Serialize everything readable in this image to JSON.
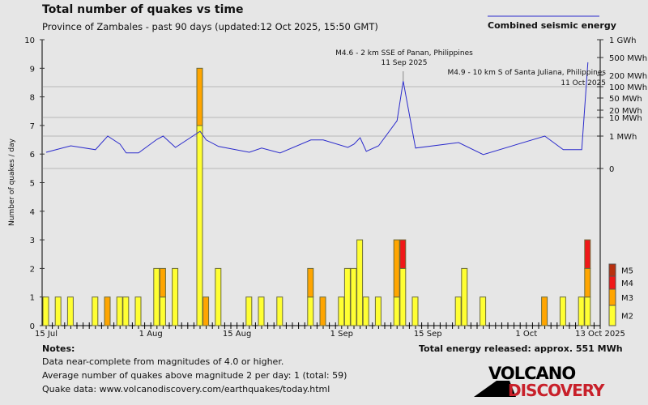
{
  "title": "Total number of quakes vs time",
  "subtitle": "Province of Zambales - past 90 days (updated:12 Oct 2025, 15:50 GMT)",
  "energy_legend": "Combined seismic energy",
  "notes": {
    "heading": "Notes:",
    "lines": [
      "Data near-complete from magnitudes of 4.0 or higher.",
      "Average number of quakes above magnitude 2 per day: 1 (total: 59)",
      "Quake data: www.volcanodiscovery.com/earthquakes/today.html"
    ]
  },
  "total_energy": "Total energy released: approx. 551 MWh",
  "logo": {
    "line1": "VOLCANO",
    "line2": "DISCOVERY"
  },
  "chart_data": {
    "type": "bar",
    "title": "Total number of quakes vs time",
    "ylabel": "Number of quakes / day",
    "ylim": [
      0,
      10
    ],
    "yticks": [
      "0",
      "1",
      "2",
      "3",
      "4",
      "5",
      "6",
      "7",
      "8",
      "9",
      "10"
    ],
    "xstart": "2025-07-15",
    "xend": "2025-10-13",
    "xticks": [
      {
        "date": "2025-07-15",
        "label": "15 Jul"
      },
      {
        "date": "2025-08-01",
        "label": "1 Aug"
      },
      {
        "date": "2025-08-15",
        "label": "15 Aug"
      },
      {
        "date": "2025-09-01",
        "label": "1 Sep"
      },
      {
        "date": "2025-09-15",
        "label": "15 Sep"
      },
      {
        "date": "2025-10-01",
        "label": "1 Oct"
      },
      {
        "date": "2025-10-13",
        "label": "13 Oct 2025"
      }
    ],
    "stack_legend": [
      {
        "name": "M5",
        "color": "#b8300f"
      },
      {
        "name": "M4",
        "color": "#f01818"
      },
      {
        "name": "M3",
        "color": "#ffa500"
      },
      {
        "name": "M2",
        "color": "#ffff33"
      }
    ],
    "days": [
      {
        "date": "2025-07-15",
        "M2": 1,
        "M3": 0,
        "M4": 0
      },
      {
        "date": "2025-07-17",
        "M2": 1,
        "M3": 0,
        "M4": 0
      },
      {
        "date": "2025-07-19",
        "M2": 1,
        "M3": 0,
        "M4": 0
      },
      {
        "date": "2025-07-23",
        "M2": 1,
        "M3": 0,
        "M4": 0
      },
      {
        "date": "2025-07-25",
        "M2": 0,
        "M3": 1,
        "M4": 0
      },
      {
        "date": "2025-07-27",
        "M2": 1,
        "M3": 0,
        "M4": 0
      },
      {
        "date": "2025-07-28",
        "M2": 1,
        "M3": 0,
        "M4": 0
      },
      {
        "date": "2025-07-30",
        "M2": 1,
        "M3": 0,
        "M4": 0
      },
      {
        "date": "2025-08-02",
        "M2": 2,
        "M3": 0,
        "M4": 0
      },
      {
        "date": "2025-08-03",
        "M2": 1,
        "M3": 1,
        "M4": 0
      },
      {
        "date": "2025-08-05",
        "M2": 2,
        "M3": 0,
        "M4": 0
      },
      {
        "date": "2025-08-09",
        "M2": 7,
        "M3": 2,
        "M4": 0
      },
      {
        "date": "2025-08-10",
        "M2": 0,
        "M3": 1,
        "M4": 0
      },
      {
        "date": "2025-08-12",
        "M2": 2,
        "M3": 0,
        "M4": 0
      },
      {
        "date": "2025-08-17",
        "M2": 1,
        "M3": 0,
        "M4": 0
      },
      {
        "date": "2025-08-19",
        "M2": 1,
        "M3": 0,
        "M4": 0
      },
      {
        "date": "2025-08-22",
        "M2": 1,
        "M3": 0,
        "M4": 0
      },
      {
        "date": "2025-08-27",
        "M2": 1,
        "M3": 1,
        "M4": 0
      },
      {
        "date": "2025-08-29",
        "M2": 0,
        "M3": 1,
        "M4": 0
      },
      {
        "date": "2025-09-01",
        "M2": 1,
        "M3": 0,
        "M4": 0
      },
      {
        "date": "2025-09-02",
        "M2": 2,
        "M3": 0,
        "M4": 0
      },
      {
        "date": "2025-09-03",
        "M2": 2,
        "M3": 0,
        "M4": 0
      },
      {
        "date": "2025-09-04",
        "M2": 3,
        "M3": 0,
        "M4": 0
      },
      {
        "date": "2025-09-05",
        "M2": 1,
        "M3": 0,
        "M4": 0
      },
      {
        "date": "2025-09-07",
        "M2": 1,
        "M3": 0,
        "M4": 0
      },
      {
        "date": "2025-09-10",
        "M2": 1,
        "M3": 2,
        "M4": 0
      },
      {
        "date": "2025-09-11",
        "M2": 2,
        "M3": 0,
        "M4": 1
      },
      {
        "date": "2025-09-13",
        "M2": 1,
        "M3": 0,
        "M4": 0
      },
      {
        "date": "2025-09-20",
        "M2": 1,
        "M3": 0,
        "M4": 0
      },
      {
        "date": "2025-09-21",
        "M2": 2,
        "M3": 0,
        "M4": 0
      },
      {
        "date": "2025-09-24",
        "M2": 1,
        "M3": 0,
        "M4": 0
      },
      {
        "date": "2025-10-04",
        "M2": 0,
        "M3": 1,
        "M4": 0
      },
      {
        "date": "2025-10-07",
        "M2": 1,
        "M3": 0,
        "M4": 0
      },
      {
        "date": "2025-10-10",
        "M2": 1,
        "M3": 0,
        "M4": 0
      },
      {
        "date": "2025-10-11",
        "M2": 1,
        "M3": 1,
        "M4": 1
      }
    ],
    "energy": {
      "name": "Combined seismic energy",
      "color": "#2b2bcc",
      "scale": "log",
      "ticks": [
        {
          "v": 0,
          "label": "0"
        },
        {
          "v": 1,
          "label": "1 MWh"
        },
        {
          "v": 10,
          "label": "10 MWh"
        },
        {
          "v": 20,
          "label": "20 MWh"
        },
        {
          "v": 50,
          "label": "50 MWh"
        },
        {
          "v": 100,
          "label": "100 MWh"
        },
        {
          "v": 200,
          "label": "200 MWh"
        },
        {
          "v": 500,
          "label": "500 MWh"
        },
        {
          "v": 1000,
          "label": "1 GWh"
        }
      ],
      "points_mwh": [
        [
          "2025-07-15",
          0.5
        ],
        [
          "2025-07-17",
          0.6
        ],
        [
          "2025-07-19",
          0.7
        ],
        [
          "2025-07-23",
          0.58
        ],
        [
          "2025-07-25",
          1.0
        ],
        [
          "2025-07-27",
          0.75
        ],
        [
          "2025-07-28",
          0.48
        ],
        [
          "2025-07-30",
          0.48
        ],
        [
          "2025-08-02",
          0.9
        ],
        [
          "2025-08-03",
          1.0
        ],
        [
          "2025-08-05",
          0.65
        ],
        [
          "2025-08-09",
          1.8
        ],
        [
          "2025-08-10",
          0.88
        ],
        [
          "2025-08-12",
          0.68
        ],
        [
          "2025-08-17",
          0.5
        ],
        [
          "2025-08-19",
          0.63
        ],
        [
          "2025-08-22",
          0.48
        ],
        [
          "2025-08-27",
          0.88
        ],
        [
          "2025-08-29",
          0.88
        ],
        [
          "2025-09-02",
          0.65
        ],
        [
          "2025-09-03",
          0.75
        ],
        [
          "2025-09-04",
          0.95
        ],
        [
          "2025-09-05",
          0.53
        ],
        [
          "2025-09-07",
          0.7
        ],
        [
          "2025-09-10",
          6.7
        ],
        [
          "2025-09-11",
          140
        ],
        [
          "2025-09-13",
          0.63
        ],
        [
          "2025-09-20",
          0.8
        ],
        [
          "2025-09-24",
          0.43
        ],
        [
          "2025-10-04",
          1.0
        ],
        [
          "2025-10-07",
          0.58
        ],
        [
          "2025-10-10",
          0.58
        ],
        [
          "2025-10-11",
          390
        ]
      ]
    },
    "annotations": [
      {
        "date": "2025-09-11",
        "line1": "M4.6 - 2 km SSE of Panan, Philippines",
        "line2": "11 Sep 2025"
      },
      {
        "date": "2025-10-11",
        "line1": "M4.9 - 10 km S of Santa Juliana, Philippines",
        "line2": "11 Oct 2025"
      }
    ]
  }
}
